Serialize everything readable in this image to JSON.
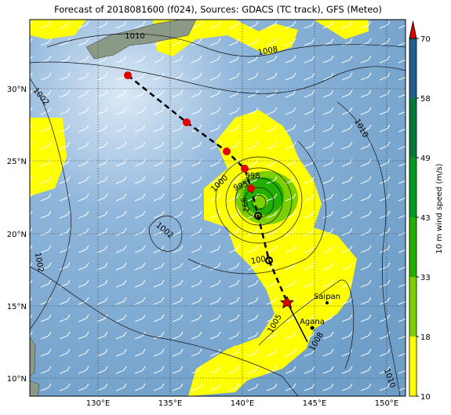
{
  "title": "Forecast of 2018081600 (f024), Sources: GDACS (TC track), GFS (Meteo)",
  "map": {
    "lon_labels": [
      "130°E",
      "135°E",
      "140°E",
      "145°E",
      "150°E"
    ],
    "lat_labels": [
      "30°N",
      "25°N",
      "20°N",
      "15°N",
      "10°N"
    ],
    "isobar_labels": [
      "1010",
      "1008",
      "1002",
      "1010",
      "1000",
      "998",
      "995",
      "992",
      "1002",
      "1002",
      "1004",
      "1005",
      "1008",
      "1010"
    ],
    "places": [
      "Saipan",
      "Agana"
    ]
  },
  "colorbar": {
    "label": "10 m wind speed (m/s)",
    "ticks": [
      10,
      18,
      33,
      43,
      49,
      58,
      70
    ],
    "colors": [
      "#ffff00",
      "#7dd000",
      "#22b000",
      "#009a20",
      "#007a3a",
      "#235f8e"
    ],
    "extend_color": "#e00000"
  }
}
